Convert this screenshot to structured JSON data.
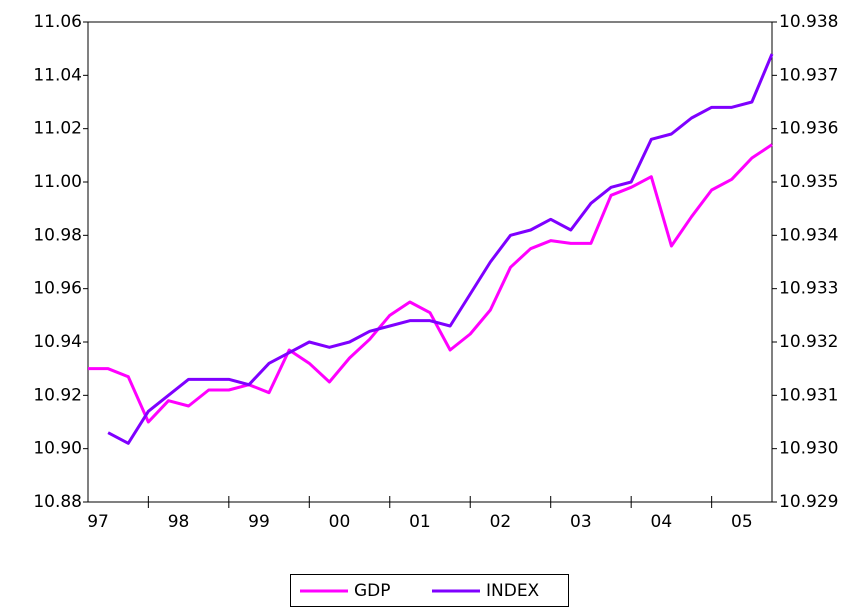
{
  "chart_data": {
    "type": "line",
    "categories": [
      "97",
      null,
      null,
      null,
      "98",
      null,
      null,
      null,
      "99",
      null,
      null,
      null,
      "00",
      null,
      null,
      null,
      "01",
      null,
      null,
      null,
      "02",
      null,
      null,
      null,
      "03",
      null,
      null,
      null,
      "04",
      null,
      null,
      null,
      "05",
      null,
      null
    ],
    "series": [
      {
        "name": "GDP",
        "color": "#ff00ff",
        "axis": "y",
        "values": [
          10.93,
          10.93,
          10.927,
          10.91,
          10.918,
          10.916,
          10.922,
          10.922,
          10.924,
          10.921,
          10.937,
          10.932,
          10.925,
          10.934,
          10.941,
          10.95,
          10.955,
          10.951,
          10.937,
          10.943,
          10.952,
          10.968,
          10.975,
          10.978,
          10.977,
          10.977,
          10.995,
          10.998,
          11.002,
          10.976,
          10.987,
          10.997,
          11.001,
          11.009,
          11.014
        ]
      },
      {
        "name": "INDEX",
        "color": "#7f00ff",
        "axis": "y2",
        "values": [
          null,
          10.9303,
          10.9301,
          10.9307,
          10.931,
          10.9313,
          10.9313,
          10.9313,
          10.9312,
          10.9316,
          10.9318,
          10.932,
          10.9319,
          10.932,
          10.9322,
          10.9323,
          10.9324,
          10.9324,
          10.9323,
          10.9329,
          10.9335,
          10.934,
          10.9341,
          10.9343,
          10.9341,
          10.9346,
          10.9349,
          10.935,
          10.9358,
          10.9359,
          10.9362,
          10.9364,
          10.9364,
          10.9365,
          10.9374
        ]
      }
    ],
    "ylim": [
      10.88,
      11.06
    ],
    "yticks": [
      10.88,
      {
        "value": 10.9,
        "label": "10.90"
      },
      10.92,
      10.94,
      10.96,
      10.98,
      {
        "value": 11.0,
        "label": "11.00"
      },
      11.02,
      11.04,
      11.06
    ],
    "y2lim": [
      10.929,
      10.938
    ],
    "y2ticks": [
      10.929,
      {
        "value": 10.93,
        "label": "10.930"
      },
      10.931,
      10.932,
      10.933,
      10.934,
      10.935,
      10.936,
      10.937,
      10.938
    ],
    "legend": "bottom"
  }
}
